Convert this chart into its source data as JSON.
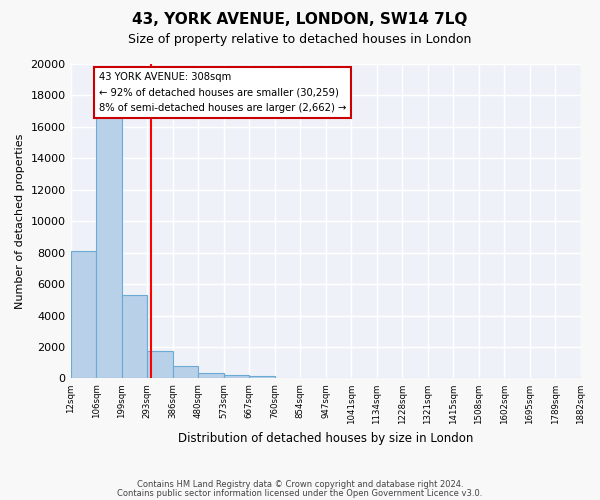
{
  "title": "43, YORK AVENUE, LONDON, SW14 7LQ",
  "subtitle": "Size of property relative to detached houses in London",
  "xlabel": "Distribution of detached houses by size in London",
  "ylabel": "Number of detached properties",
  "bar_color": "#b8d0e8",
  "bar_edge_color": "#6aaad4",
  "background_color": "#eef2f8",
  "grid_color": "#ffffff",
  "red_line_x": 308,
  "annotation_title": "43 YORK AVENUE: 308sqm",
  "annotation_line1": "← 92% of detached houses are smaller (30,259)",
  "annotation_line2": "8% of semi-detached houses are larger (2,662) →",
  "annotation_box_color": "#ffffff",
  "annotation_box_edge": "#cc0000",
  "footer_line1": "Contains HM Land Registry data © Crown copyright and database right 2024.",
  "footer_line2": "Contains public sector information licensed under the Open Government Licence v3.0.",
  "tick_labels": [
    "12sqm",
    "106sqm",
    "199sqm",
    "293sqm",
    "386sqm",
    "480sqm",
    "573sqm",
    "667sqm",
    "760sqm",
    "854sqm",
    "947sqm",
    "1041sqm",
    "1134sqm",
    "1228sqm",
    "1321sqm",
    "1415sqm",
    "1508sqm",
    "1602sqm",
    "1695sqm",
    "1789sqm",
    "1882sqm"
  ],
  "values": [
    8100,
    16600,
    5300,
    1750,
    800,
    320,
    190,
    130,
    0,
    0,
    0,
    0,
    0,
    0,
    0,
    0,
    0,
    0,
    0,
    0
  ],
  "bin_edges": [
    12,
    106,
    199,
    293,
    386,
    480,
    573,
    667,
    760,
    854,
    947,
    1041,
    1134,
    1228,
    1321,
    1415,
    1508,
    1602,
    1695,
    1789,
    1882
  ],
  "ylim": [
    0,
    20000
  ],
  "yticks": [
    0,
    2000,
    4000,
    6000,
    8000,
    10000,
    12000,
    14000,
    16000,
    18000,
    20000
  ]
}
